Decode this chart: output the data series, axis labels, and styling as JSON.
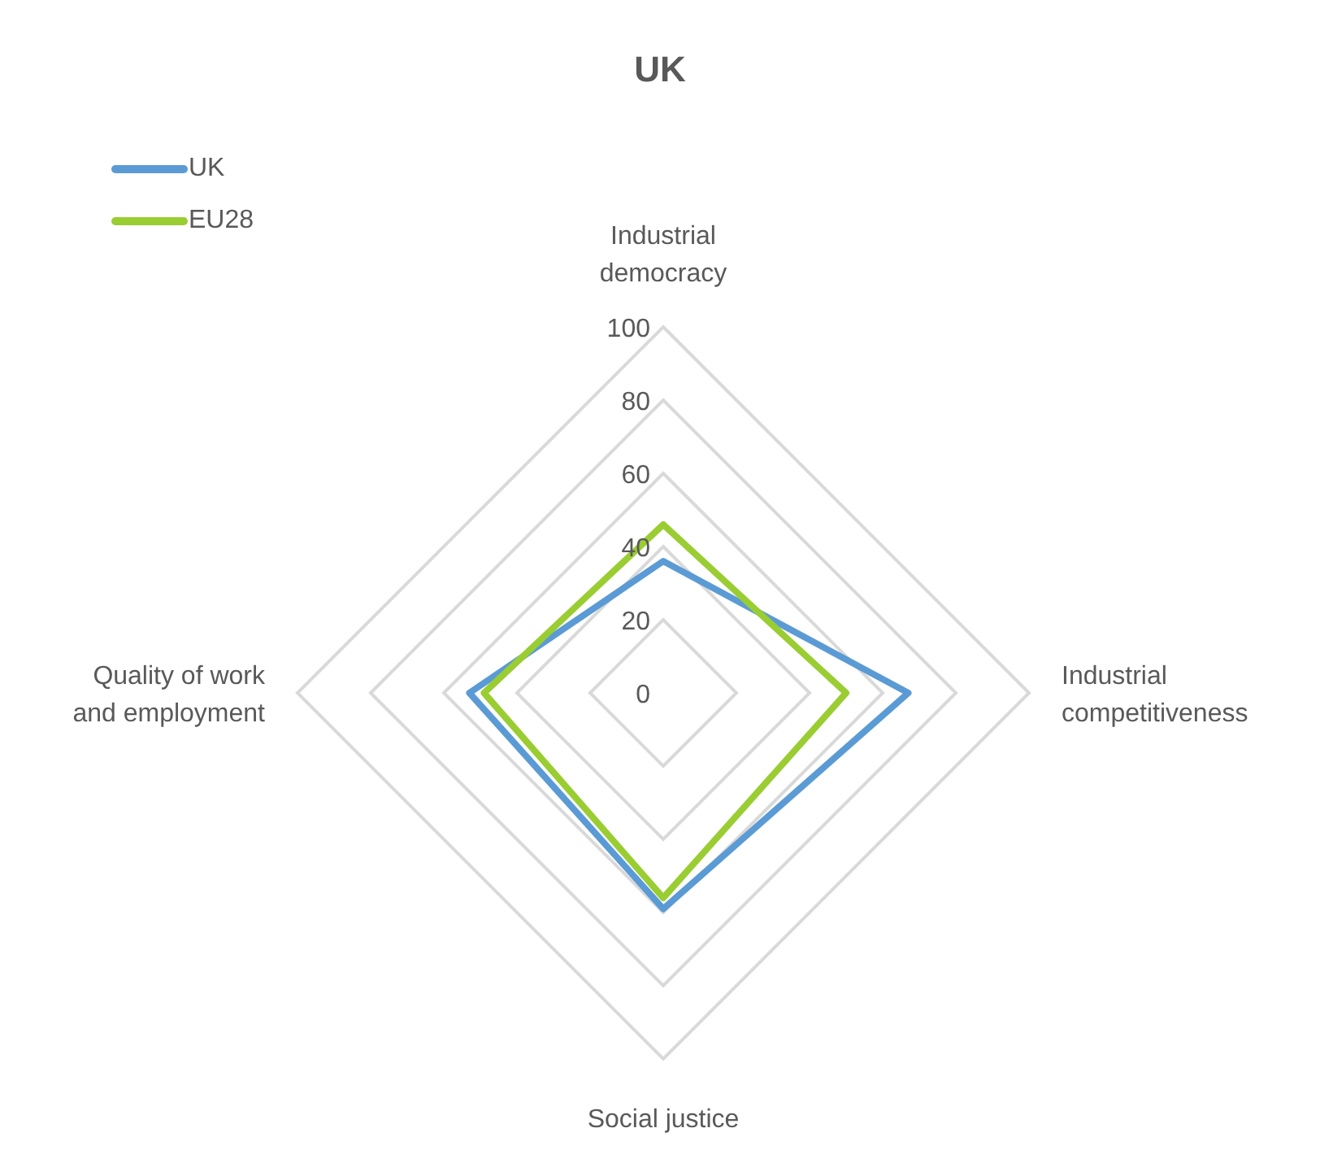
{
  "chart_data": {
    "type": "radar",
    "title": "UK",
    "categories": [
      "Industrial democracy",
      "Industrial competitiveness",
      "Social justice",
      "Quality of work and employment"
    ],
    "series": [
      {
        "name": "UK",
        "color": "#5b9bd5",
        "values": [
          36,
          67,
          59,
          53
        ]
      },
      {
        "name": "EU28",
        "color": "#9acd32",
        "values": [
          46,
          50,
          56,
          49
        ]
      }
    ],
    "ylim": [
      0,
      100
    ],
    "yticks": [
      0,
      20,
      40,
      60,
      80,
      100
    ],
    "grid": true,
    "legend": "top left",
    "marker": "none"
  }
}
